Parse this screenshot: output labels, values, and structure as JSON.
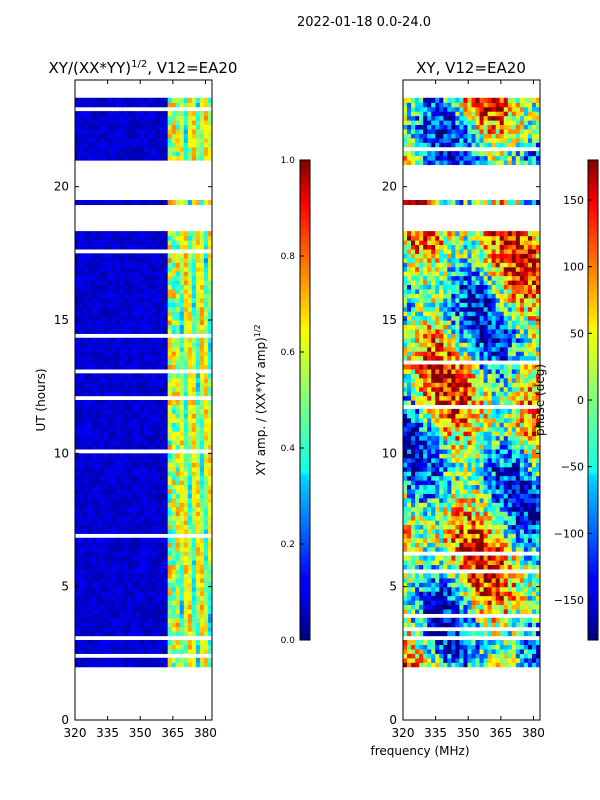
{
  "suptitle": "2022-01-18 0.0-24.0",
  "colors": {
    "background": "#ffffff",
    "axes": "#000000",
    "nodata": "#ffffff"
  },
  "chart_data": [
    {
      "type": "heatmap",
      "id": "amp",
      "title_main": "XY/(XX*YY)",
      "title_exp": "1/2",
      "title_tail": ", V12=EA20",
      "xlabel": "",
      "ylabel": "UT (hours)",
      "xlim": [
        320,
        383
      ],
      "ylim": [
        0,
        24
      ],
      "xticks": [
        320,
        335,
        350,
        365,
        380
      ],
      "yticks": [
        0,
        5,
        10,
        15,
        20
      ],
      "colormap": "jet",
      "data_extent_hours": [
        2.0,
        24.0
      ],
      "gap_bands_hours": [
        [
          20.5,
          20.8
        ],
        [
          19.4,
          20.4
        ],
        [
          18.3,
          19.3
        ],
        [
          1.2,
          2.0
        ],
        [
          0.0,
          1.2
        ],
        [
          23.3,
          24.0
        ]
      ],
      "colorbar": {
        "label": "XY amp. / (XX*YY amp)",
        "label_exp": "1/2",
        "range": [
          0.0,
          1.0
        ],
        "ticks": [
          "0.0",
          "0.2",
          "0.4",
          "0.6",
          "0.8",
          "1.0"
        ]
      }
    },
    {
      "type": "heatmap",
      "id": "phase",
      "title_main": "XY, V12=EA20",
      "title_exp": "",
      "title_tail": "",
      "xlabel": "frequency (MHz)",
      "ylabel": "",
      "xlim": [
        320,
        383
      ],
      "ylim": [
        0,
        24
      ],
      "xticks": [
        320,
        335,
        350,
        365,
        380
      ],
      "yticks": [
        0,
        5,
        10,
        15,
        20
      ],
      "colormap": "jet",
      "data_extent_hours": [
        2.0,
        24.0
      ],
      "colorbar": {
        "label": "phase (deg)",
        "range": [
          -180,
          180
        ],
        "ticks": [
          "−150",
          "−100",
          "−50",
          "0",
          "50",
          "100",
          "150"
        ],
        "tick_values": [
          -150,
          -100,
          -50,
          0,
          50,
          100,
          150
        ]
      }
    }
  ]
}
